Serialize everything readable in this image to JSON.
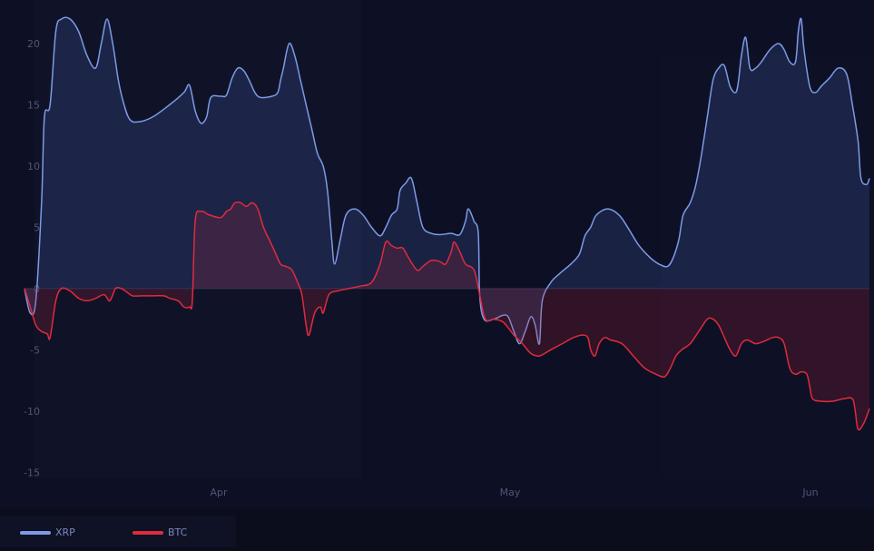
{
  "chart_data": {
    "type": "area",
    "title": "",
    "xlabel": "",
    "ylabel": "",
    "x_ticks": [
      "Apr",
      "May",
      "Jun"
    ],
    "y_ticks": [
      20,
      15,
      10,
      5,
      0,
      -5,
      -10,
      -15
    ],
    "ylim": [
      -15.5,
      23
    ],
    "grid": false,
    "legend_position": "bottom-left",
    "series": [
      {
        "name": "XRP",
        "color": "#7c9ae6",
        "points": [
          [
            0,
            0
          ],
          [
            4,
            -2
          ],
          [
            8,
            -1
          ],
          [
            12,
            7
          ],
          [
            14,
            14
          ],
          [
            18,
            15
          ],
          [
            22,
            21
          ],
          [
            26,
            22
          ],
          [
            32,
            22
          ],
          [
            38,
            21
          ],
          [
            44,
            19
          ],
          [
            50,
            18
          ],
          [
            54,
            20
          ],
          [
            58,
            22
          ],
          [
            62,
            20
          ],
          [
            66,
            17
          ],
          [
            70,
            15
          ],
          [
            74,
            13.8
          ],
          [
            80,
            13.6
          ],
          [
            90,
            14
          ],
          [
            102,
            15
          ],
          [
            112,
            16
          ],
          [
            116,
            16.6
          ],
          [
            120,
            14.5
          ],
          [
            124,
            13.5
          ],
          [
            128,
            14
          ],
          [
            131,
            15.6
          ],
          [
            138,
            15.7
          ],
          [
            142,
            15.8
          ],
          [
            146,
            17.2
          ],
          [
            150,
            18
          ],
          [
            154,
            17.8
          ],
          [
            158,
            17
          ],
          [
            162,
            16
          ],
          [
            166,
            15.6
          ],
          [
            174,
            15.7
          ],
          [
            178,
            16
          ],
          [
            180,
            17
          ],
          [
            182,
            18
          ],
          [
            186,
            20
          ],
          [
            190,
            19
          ],
          [
            194,
            17
          ],
          [
            198,
            15
          ],
          [
            202,
            13
          ],
          [
            206,
            11
          ],
          [
            210,
            10
          ],
          [
            213,
            8
          ],
          [
            216,
            4
          ],
          [
            218,
            2
          ],
          [
            222,
            4
          ],
          [
            226,
            6
          ],
          [
            232,
            6.5
          ],
          [
            238,
            6
          ],
          [
            244,
            5
          ],
          [
            250,
            4.3
          ],
          [
            254,
            5
          ],
          [
            258,
            6
          ],
          [
            262,
            6.5
          ],
          [
            264,
            8
          ],
          [
            268,
            8.6
          ],
          [
            272,
            9
          ],
          [
            276,
            7
          ],
          [
            280,
            5
          ],
          [
            286,
            4.5
          ],
          [
            292,
            4.4
          ],
          [
            300,
            4.5
          ],
          [
            306,
            4.4
          ],
          [
            310,
            5.5
          ],
          [
            312,
            6.5
          ],
          [
            316,
            5.5
          ],
          [
            319,
            4.5
          ],
          [
            320,
            -0.5
          ],
          [
            323,
            -2.5
          ],
          [
            330,
            -2.5
          ],
          [
            336,
            -2.2
          ],
          [
            340,
            -2.3
          ],
          [
            344,
            -3.5
          ],
          [
            348,
            -4.5
          ],
          [
            352,
            -3.5
          ],
          [
            356,
            -2.3
          ],
          [
            359,
            -3
          ],
          [
            362,
            -4.5
          ],
          [
            364,
            -1
          ],
          [
            370,
            0.5
          ],
          [
            376,
            1.2
          ],
          [
            384,
            2
          ],
          [
            390,
            2.8
          ],
          [
            394,
            4.3
          ],
          [
            398,
            5
          ],
          [
            402,
            6
          ],
          [
            410,
            6.5
          ],
          [
            418,
            6
          ],
          [
            424,
            5
          ],
          [
            432,
            3.5
          ],
          [
            440,
            2.5
          ],
          [
            446,
            2
          ],
          [
            452,
            1.8
          ],
          [
            456,
            2.5
          ],
          [
            460,
            4
          ],
          [
            463,
            6
          ],
          [
            468,
            7
          ],
          [
            472,
            8.5
          ],
          [
            476,
            11
          ],
          [
            480,
            14
          ],
          [
            484,
            17
          ],
          [
            488,
            18
          ],
          [
            492,
            18.2
          ],
          [
            496,
            16.5
          ],
          [
            500,
            16
          ],
          [
            502,
            17
          ],
          [
            504,
            19
          ],
          [
            507,
            20.5
          ],
          [
            510,
            18
          ],
          [
            514,
            18
          ],
          [
            518,
            18.5
          ],
          [
            524,
            19.5
          ],
          [
            530,
            20
          ],
          [
            534,
            19.5
          ],
          [
            538,
            18.5
          ],
          [
            542,
            18.5
          ],
          [
            544,
            21
          ],
          [
            546,
            22
          ],
          [
            548,
            19.5
          ],
          [
            552,
            16.5
          ],
          [
            556,
            16
          ],
          [
            560,
            16.5
          ],
          [
            566,
            17.2
          ],
          [
            572,
            18
          ],
          [
            578,
            17.5
          ],
          [
            582,
            15
          ],
          [
            586,
            12
          ],
          [
            588,
            9
          ],
          [
            592,
            8.5
          ],
          [
            594,
            9
          ]
        ]
      },
      {
        "name": "BTC",
        "color": "#df2b3d",
        "points": [
          [
            0,
            0
          ],
          [
            4,
            -1.5
          ],
          [
            8,
            -3
          ],
          [
            12,
            -3.5
          ],
          [
            16,
            -3.7
          ],
          [
            18,
            -4
          ],
          [
            22,
            -1
          ],
          [
            26,
            0
          ],
          [
            32,
            -0.2
          ],
          [
            38,
            -0.8
          ],
          [
            44,
            -1
          ],
          [
            50,
            -0.8
          ],
          [
            56,
            -0.5
          ],
          [
            60,
            -1
          ],
          [
            64,
            0
          ],
          [
            68,
            0
          ],
          [
            72,
            -0.3
          ],
          [
            76,
            -0.6
          ],
          [
            82,
            -0.6
          ],
          [
            90,
            -0.6
          ],
          [
            98,
            -0.6
          ],
          [
            102,
            -0.8
          ],
          [
            108,
            -1
          ],
          [
            112,
            -1.5
          ],
          [
            116,
            -1.5
          ],
          [
            118,
            -1
          ],
          [
            120,
            5.5
          ],
          [
            124,
            6.3
          ],
          [
            130,
            6
          ],
          [
            138,
            5.8
          ],
          [
            142,
            6.3
          ],
          [
            145,
            6.5
          ],
          [
            148,
            7
          ],
          [
            152,
            7
          ],
          [
            156,
            6.7
          ],
          [
            160,
            7
          ],
          [
            164,
            6.5
          ],
          [
            168,
            5
          ],
          [
            172,
            4
          ],
          [
            176,
            3
          ],
          [
            180,
            2
          ],
          [
            184,
            1.8
          ],
          [
            188,
            1.5
          ],
          [
            192,
            0.5
          ],
          [
            195,
            -0.5
          ],
          [
            198,
            -3
          ],
          [
            200,
            -3.8
          ],
          [
            204,
            -2
          ],
          [
            208,
            -1.5
          ],
          [
            210,
            -2
          ],
          [
            214,
            -0.5
          ],
          [
            220,
            -0.2
          ],
          [
            228,
            0
          ],
          [
            236,
            0.2
          ],
          [
            244,
            0.5
          ],
          [
            250,
            2
          ],
          [
            254,
            3.8
          ],
          [
            258,
            3.5
          ],
          [
            262,
            3.3
          ],
          [
            266,
            3.3
          ],
          [
            270,
            2.5
          ],
          [
            276,
            1.5
          ],
          [
            280,
            1.8
          ],
          [
            286,
            2.3
          ],
          [
            292,
            2.2
          ],
          [
            296,
            2
          ],
          [
            300,
            3
          ],
          [
            302,
            3.8
          ],
          [
            306,
            3
          ],
          [
            310,
            2
          ],
          [
            316,
            1.5
          ],
          [
            320,
            -0.5
          ],
          [
            324,
            -2.5
          ],
          [
            330,
            -2.5
          ],
          [
            336,
            -2.7
          ],
          [
            340,
            -3.2
          ],
          [
            344,
            -3.8
          ],
          [
            350,
            -4.5
          ],
          [
            356,
            -5.3
          ],
          [
            362,
            -5.5
          ],
          [
            370,
            -5
          ],
          [
            378,
            -4.5
          ],
          [
            386,
            -4
          ],
          [
            392,
            -3.8
          ],
          [
            396,
            -4
          ],
          [
            398,
            -5
          ],
          [
            401,
            -5.5
          ],
          [
            404,
            -4.5
          ],
          [
            408,
            -4
          ],
          [
            412,
            -4.2
          ],
          [
            420,
            -4.5
          ],
          [
            428,
            -5.5
          ],
          [
            436,
            -6.5
          ],
          [
            444,
            -7
          ],
          [
            450,
            -7.2
          ],
          [
            454,
            -6.5
          ],
          [
            458,
            -5.5
          ],
          [
            462,
            -5
          ],
          [
            468,
            -4.5
          ],
          [
            474,
            -3.5
          ],
          [
            480,
            -2.5
          ],
          [
            484,
            -2.5
          ],
          [
            488,
            -3
          ],
          [
            492,
            -4
          ],
          [
            496,
            -5
          ],
          [
            500,
            -5.5
          ],
          [
            504,
            -4.5
          ],
          [
            508,
            -4.2
          ],
          [
            514,
            -4.5
          ],
          [
            520,
            -4.3
          ],
          [
            526,
            -4
          ],
          [
            530,
            -4
          ],
          [
            534,
            -4.5
          ],
          [
            538,
            -6.5
          ],
          [
            542,
            -7
          ],
          [
            546,
            -6.8
          ],
          [
            550,
            -7
          ],
          [
            552,
            -8
          ],
          [
            554,
            -9
          ],
          [
            560,
            -9.2
          ],
          [
            568,
            -9.2
          ],
          [
            576,
            -9
          ],
          [
            582,
            -9
          ],
          [
            584,
            -10
          ],
          [
            586,
            -11.5
          ],
          [
            590,
            -11
          ],
          [
            594,
            -9.8
          ]
        ]
      }
    ]
  },
  "legend": {
    "xrp_label": "XRP",
    "btc_label": "BTC",
    "xrp_color": "#7c9ae6",
    "btc_color": "#df2b3d"
  }
}
